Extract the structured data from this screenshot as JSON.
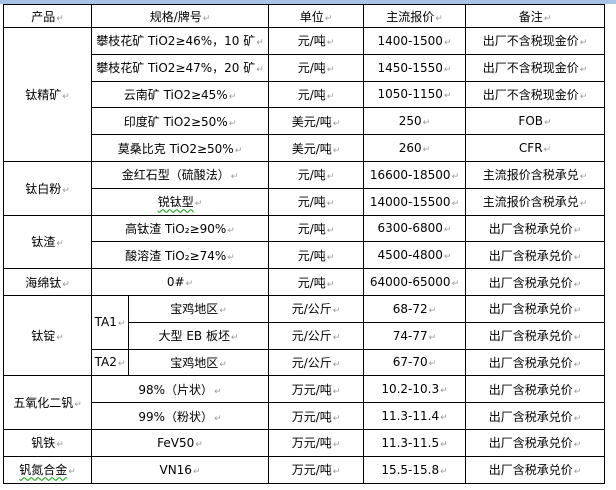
{
  "header": {
    "product": "产品",
    "spec": "规格/牌号",
    "unit": "单位",
    "price": "主流报价",
    "note": "备注"
  },
  "groups": {
    "titanium_concentrate": {
      "name": "钛精矿",
      "rows": [
        {
          "spec": "攀枝花矿 TiO2≥46%，10 矿",
          "unit": "元/吨",
          "price": "1400-1500",
          "note": "出厂不含税现金价"
        },
        {
          "spec": "攀枝花矿 TiO2≥47%，20 矿",
          "unit": "元/吨",
          "price": "1450-1550",
          "note": "出厂不含税现金价"
        },
        {
          "spec": "云南矿 TiO2≥45%",
          "unit": "元/吨",
          "price": "1050-1150",
          "note": "出厂不含税现金价"
        },
        {
          "spec": "印度矿 TiO2≥50%",
          "unit": "美元/吨",
          "price": "250",
          "note": "FOB"
        },
        {
          "spec": "莫桑比克 TiO2≥50%",
          "unit": "美元/吨",
          "price": "260",
          "note": "CFR"
        }
      ]
    },
    "titanium_dioxide": {
      "name": "钛白粉",
      "rows": [
        {
          "spec": "金红石型（硫酸法）",
          "unit": "元/吨",
          "price": "16600-18500",
          "note": "主流报价含税承兑"
        },
        {
          "spec": "锐钛型",
          "unit": "元/吨",
          "price": "14000-15500",
          "note": "主流报价含税承兑"
        }
      ]
    },
    "titanium_slag": {
      "name": "钛渣",
      "rows": [
        {
          "spec": "高钛渣 TiO₂≥90%",
          "unit": "元/吨",
          "price": "6300-6800",
          "note": "出厂含税承兑价"
        },
        {
          "spec": "酸溶渣 TiO₂≥74%",
          "unit": "元/吨",
          "price": "4500-4800",
          "note": "出厂含税承兑价"
        }
      ]
    },
    "sponge_titanium": {
      "name": "海绵钛",
      "rows": [
        {
          "spec": "0#",
          "unit": "元/吨",
          "price": "64000-65000",
          "note": "出厂含税承兑价"
        }
      ]
    },
    "titanium_ingot": {
      "name": "钛锭",
      "grades": [
        "TA1",
        "TA2"
      ],
      "rows": [
        {
          "spec": "宝鸡地区",
          "unit": "元/公斤",
          "price": "68-72",
          "note": "出厂含税承兑价"
        },
        {
          "spec": "大型 EB 板坯",
          "unit": "元/公斤",
          "price": "74-77",
          "note": "出厂含税承兑价"
        },
        {
          "spec": "宝鸡地区",
          "unit": "元/公斤",
          "price": "67-70",
          "note": "出厂含税承兑价"
        }
      ]
    },
    "vanadium_pentoxide": {
      "name": "五氧化二钒",
      "rows": [
        {
          "spec": "98%（片状）",
          "unit": "万元/吨",
          "price": "10.2-10.3",
          "note": "出厂含税承兑价"
        },
        {
          "spec": "99%（粉状）",
          "unit": "万元/吨",
          "price": "11.3-11.4",
          "note": "出厂含税承兑价"
        }
      ]
    },
    "ferrovanadium": {
      "name": "钒铁",
      "rows": [
        {
          "spec": "FeV50",
          "unit": "万元/吨",
          "price": "11.3-11.5",
          "note": "出厂含税承兑价"
        }
      ]
    },
    "vanadium_nitrogen": {
      "name": "钒氮合金",
      "rows": [
        {
          "spec": "VN16",
          "unit": "万元/吨",
          "price": "15.5-15.8",
          "note": "出厂含税承兑价"
        }
      ]
    }
  }
}
